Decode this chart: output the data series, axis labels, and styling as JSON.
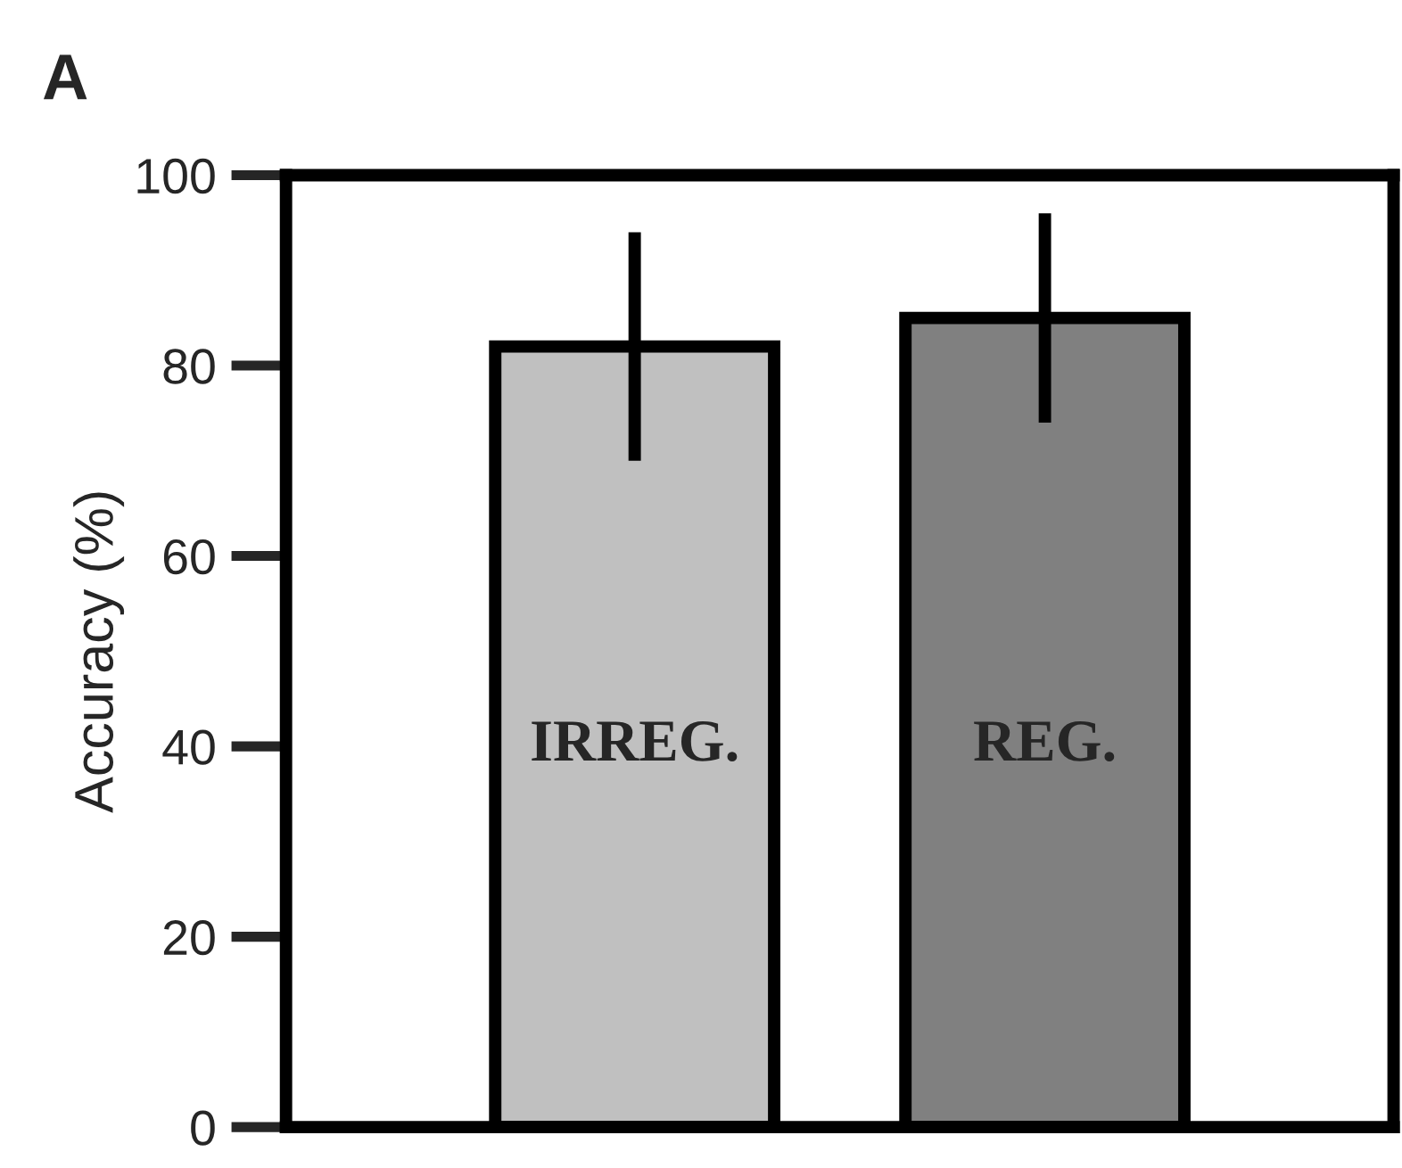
{
  "chart_data": {
    "type": "bar",
    "title": "A",
    "ylabel": "Accuracy (%)",
    "categories": [
      "IRREG.",
      "REG."
    ],
    "values": [
      82,
      85
    ],
    "errors": [
      12,
      11
    ],
    "colors": [
      "#c0c0c0",
      "#808080"
    ],
    "ylim": [
      0,
      100
    ],
    "yticks": [
      0,
      20,
      40,
      60,
      80,
      100
    ],
    "grid": false,
    "legend": false
  }
}
